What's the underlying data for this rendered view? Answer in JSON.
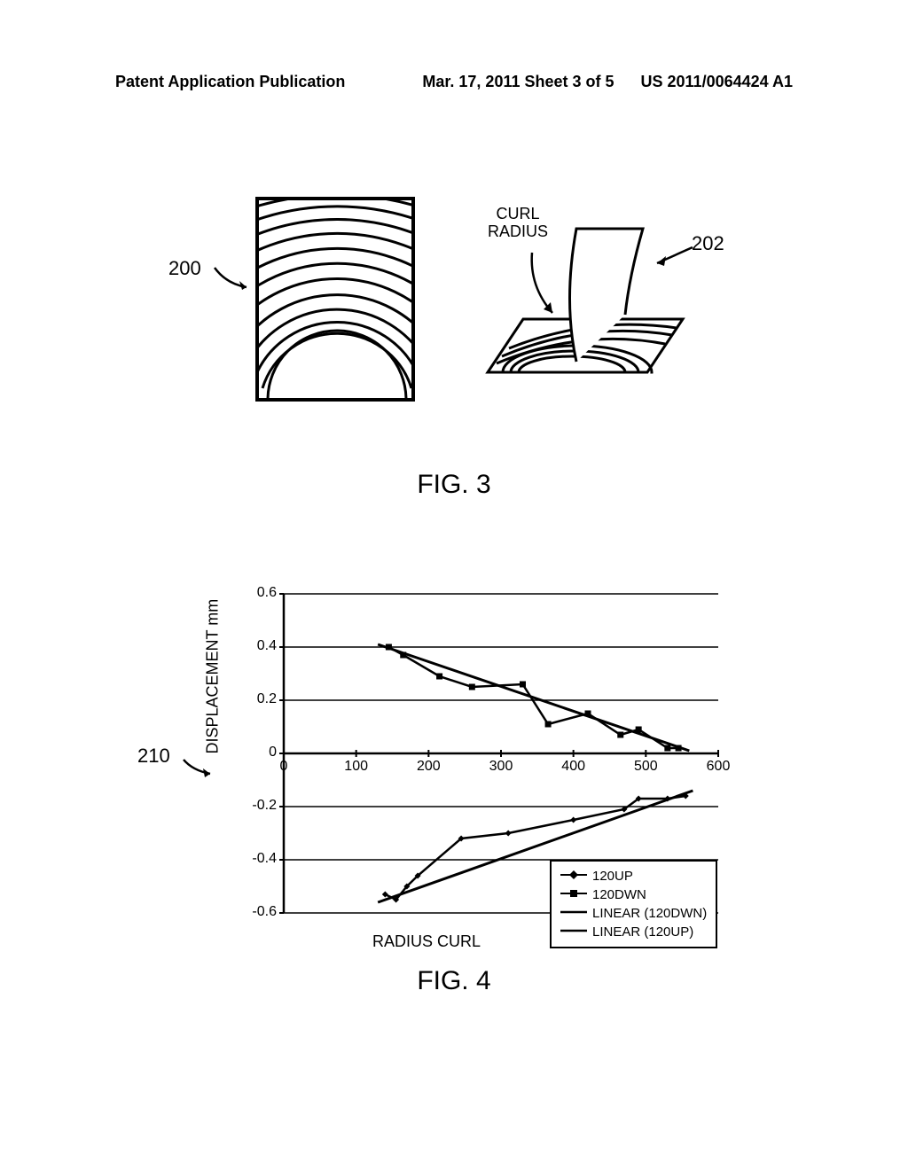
{
  "header": {
    "left": "Patent Application Publication",
    "center": "Mar. 17, 2011  Sheet 3 of 5",
    "right": "US 2011/0064424 A1"
  },
  "fig3": {
    "label": "FIG. 3",
    "ref_200": "200",
    "ref_202": "202",
    "curl_radius": "CURL\nRADIUS"
  },
  "fig4": {
    "label": "FIG. 4",
    "ref_210": "210",
    "ylabel": "DISPLACEMENT mm",
    "xlabel": "RADIUS CURL",
    "xlim": [
      0,
      600
    ],
    "ylim": [
      -0.6,
      0.6
    ],
    "xtick_step": 100,
    "ytick_step": 0.2,
    "xticks": [
      0,
      100,
      200,
      300,
      400,
      500,
      600
    ],
    "yticks": [
      0.6,
      0.4,
      0.2,
      0,
      -0.2,
      -0.4,
      -0.6
    ],
    "grid_color": "#000000",
    "background_color": "#ffffff",
    "line_color": "#000000",
    "marker_size": 7,
    "line_width": 2.5,
    "series_120dwn": {
      "label": "120DWN",
      "marker": "square",
      "points": [
        {
          "x": 145,
          "y": 0.4
        },
        {
          "x": 165,
          "y": 0.37
        },
        {
          "x": 215,
          "y": 0.29
        },
        {
          "x": 260,
          "y": 0.25
        },
        {
          "x": 330,
          "y": 0.26
        },
        {
          "x": 365,
          "y": 0.11
        },
        {
          "x": 420,
          "y": 0.15
        },
        {
          "x": 465,
          "y": 0.07
        },
        {
          "x": 490,
          "y": 0.09
        },
        {
          "x": 530,
          "y": 0.02
        },
        {
          "x": 545,
          "y": 0.02
        }
      ],
      "linear_fit": {
        "x1": 130,
        "y1": 0.41,
        "x2": 560,
        "y2": 0.01
      }
    },
    "series_120up": {
      "label": "120UP",
      "marker": "diamond",
      "points": [
        {
          "x": 140,
          "y": -0.53
        },
        {
          "x": 155,
          "y": -0.55
        },
        {
          "x": 170,
          "y": -0.5
        },
        {
          "x": 185,
          "y": -0.46
        },
        {
          "x": 245,
          "y": -0.32
        },
        {
          "x": 310,
          "y": -0.3
        },
        {
          "x": 400,
          "y": -0.25
        },
        {
          "x": 470,
          "y": -0.21
        },
        {
          "x": 490,
          "y": -0.17
        },
        {
          "x": 530,
          "y": -0.17
        },
        {
          "x": 555,
          "y": -0.16
        }
      ],
      "linear_fit": {
        "x1": 130,
        "y1": -0.56,
        "x2": 565,
        "y2": -0.14
      }
    },
    "legend": {
      "items": [
        "120UP",
        "120DWN",
        "LINEAR (120DWN)",
        "LINEAR (120UP)"
      ]
    }
  }
}
